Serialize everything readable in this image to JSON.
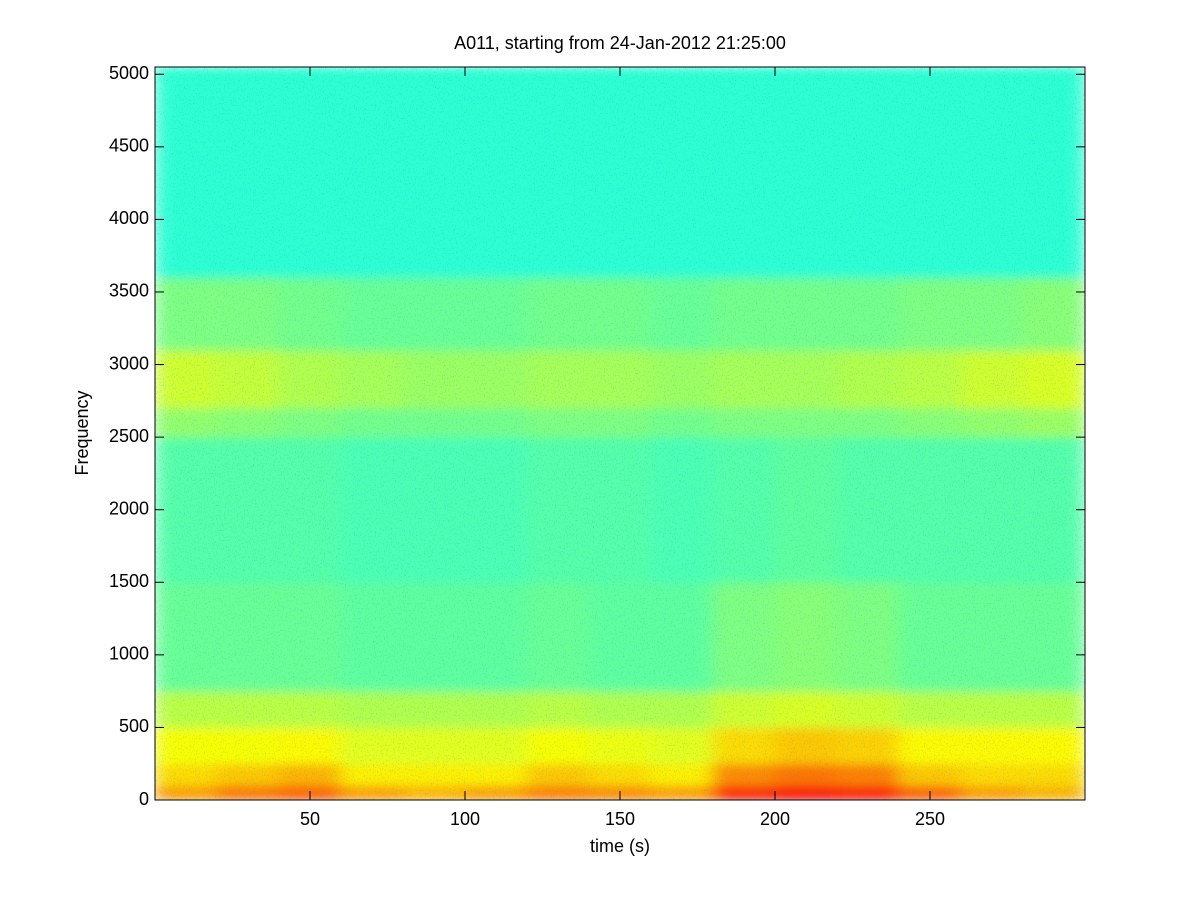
{
  "chart_data": {
    "type": "spectrogram",
    "title": "A011, starting from 24-Jan-2012 21:25:00",
    "x_label": "time (s)",
    "y_label": "Frequency",
    "colormap": "jet",
    "xlim": [
      0,
      300
    ],
    "ylim": [
      0,
      5050
    ],
    "xticks": [
      50,
      100,
      150,
      200,
      250
    ],
    "yticks": [
      0,
      500,
      1000,
      1500,
      2000,
      2500,
      3000,
      3500,
      4000,
      4500,
      5000
    ],
    "time_bins": [
      0,
      20,
      40,
      60,
      80,
      100,
      120,
      140,
      160,
      180,
      200,
      220,
      240,
      260,
      280,
      300
    ],
    "freq_bins": [
      0,
      100,
      250,
      500,
      750,
      1500,
      2500,
      2700,
      3100,
      3600,
      5050
    ],
    "z": [
      [
        0.72,
        0.76,
        0.78,
        0.72,
        0.7,
        0.72,
        0.75,
        0.74,
        0.72,
        0.84,
        0.86,
        0.85,
        0.78,
        0.72,
        0.7
      ],
      [
        0.66,
        0.68,
        0.7,
        0.64,
        0.64,
        0.64,
        0.68,
        0.66,
        0.64,
        0.74,
        0.76,
        0.75,
        0.68,
        0.66,
        0.66
      ],
      [
        0.62,
        0.62,
        0.63,
        0.6,
        0.6,
        0.6,
        0.62,
        0.61,
        0.6,
        0.66,
        0.68,
        0.67,
        0.63,
        0.63,
        0.63
      ],
      [
        0.56,
        0.56,
        0.56,
        0.55,
        0.55,
        0.55,
        0.56,
        0.55,
        0.55,
        0.58,
        0.59,
        0.58,
        0.56,
        0.56,
        0.56
      ],
      [
        0.48,
        0.48,
        0.48,
        0.47,
        0.47,
        0.47,
        0.48,
        0.47,
        0.47,
        0.5,
        0.51,
        0.5,
        0.48,
        0.48,
        0.48
      ],
      [
        0.46,
        0.46,
        0.46,
        0.45,
        0.45,
        0.45,
        0.46,
        0.46,
        0.45,
        0.46,
        0.47,
        0.46,
        0.46,
        0.46,
        0.46
      ],
      [
        0.52,
        0.51,
        0.5,
        0.49,
        0.49,
        0.49,
        0.5,
        0.5,
        0.49,
        0.5,
        0.5,
        0.5,
        0.51,
        0.52,
        0.53
      ],
      [
        0.58,
        0.57,
        0.55,
        0.54,
        0.53,
        0.53,
        0.54,
        0.54,
        0.53,
        0.54,
        0.54,
        0.55,
        0.56,
        0.58,
        0.59
      ],
      [
        0.5,
        0.5,
        0.49,
        0.48,
        0.48,
        0.48,
        0.49,
        0.49,
        0.48,
        0.49,
        0.49,
        0.49,
        0.5,
        0.5,
        0.51
      ],
      [
        0.42,
        0.42,
        0.42,
        0.42,
        0.42,
        0.42,
        0.42,
        0.42,
        0.42,
        0.42,
        0.42,
        0.42,
        0.42,
        0.42,
        0.42
      ]
    ]
  }
}
